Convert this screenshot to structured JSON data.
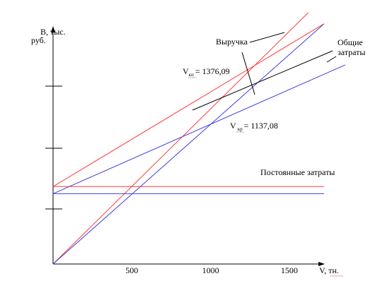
{
  "chart_data": {
    "type": "line",
    "title": "",
    "ylabel": "В, тыс. руб.",
    "xlabel": "V, тн.",
    "x_ticks": [
      500,
      1000,
      1500
    ],
    "xlim": [
      0,
      1720
    ],
    "grid": false,
    "series": [
      {
        "name": "Выручка",
        "color": "#ff3b3b",
        "x": [
          0,
          1620
        ],
        "y": [
          0,
          1590
        ]
      },
      {
        "name": "Выручка",
        "color": "#4040e0",
        "x": [
          0,
          1720
        ],
        "y": [
          0,
          1520
        ]
      },
      {
        "name": "Общие затраты",
        "color": "#ff3b3b",
        "x": [
          0,
          1720
        ],
        "y": [
          490,
          1520
        ]
      },
      {
        "name": "Общие затраты",
        "color": "#4040e0",
        "x": [
          0,
          1855
        ],
        "y": [
          445,
          1260
        ]
      },
      {
        "name": "Постоянные затраты",
        "color": "#ff3b3b",
        "x": [
          0,
          1720
        ],
        "y": [
          490,
          490
        ]
      },
      {
        "name": "Постоянные затраты",
        "color": "#4040e0",
        "x": [
          0,
          1720
        ],
        "y": [
          445,
          445
        ]
      }
    ],
    "annotations": {
      "revenue": "Выручка",
      "total_costs_line1": "Общие",
      "total_costs_line2": "затраты",
      "fixed_costs": "Постоянные затраты",
      "v_red": {
        "v": "V",
        "sub": "кп",
        "value": "= 1376,09"
      },
      "v_blue": {
        "v": "V",
        "sub": "кр",
        "value": "= 1137,08"
      }
    }
  }
}
